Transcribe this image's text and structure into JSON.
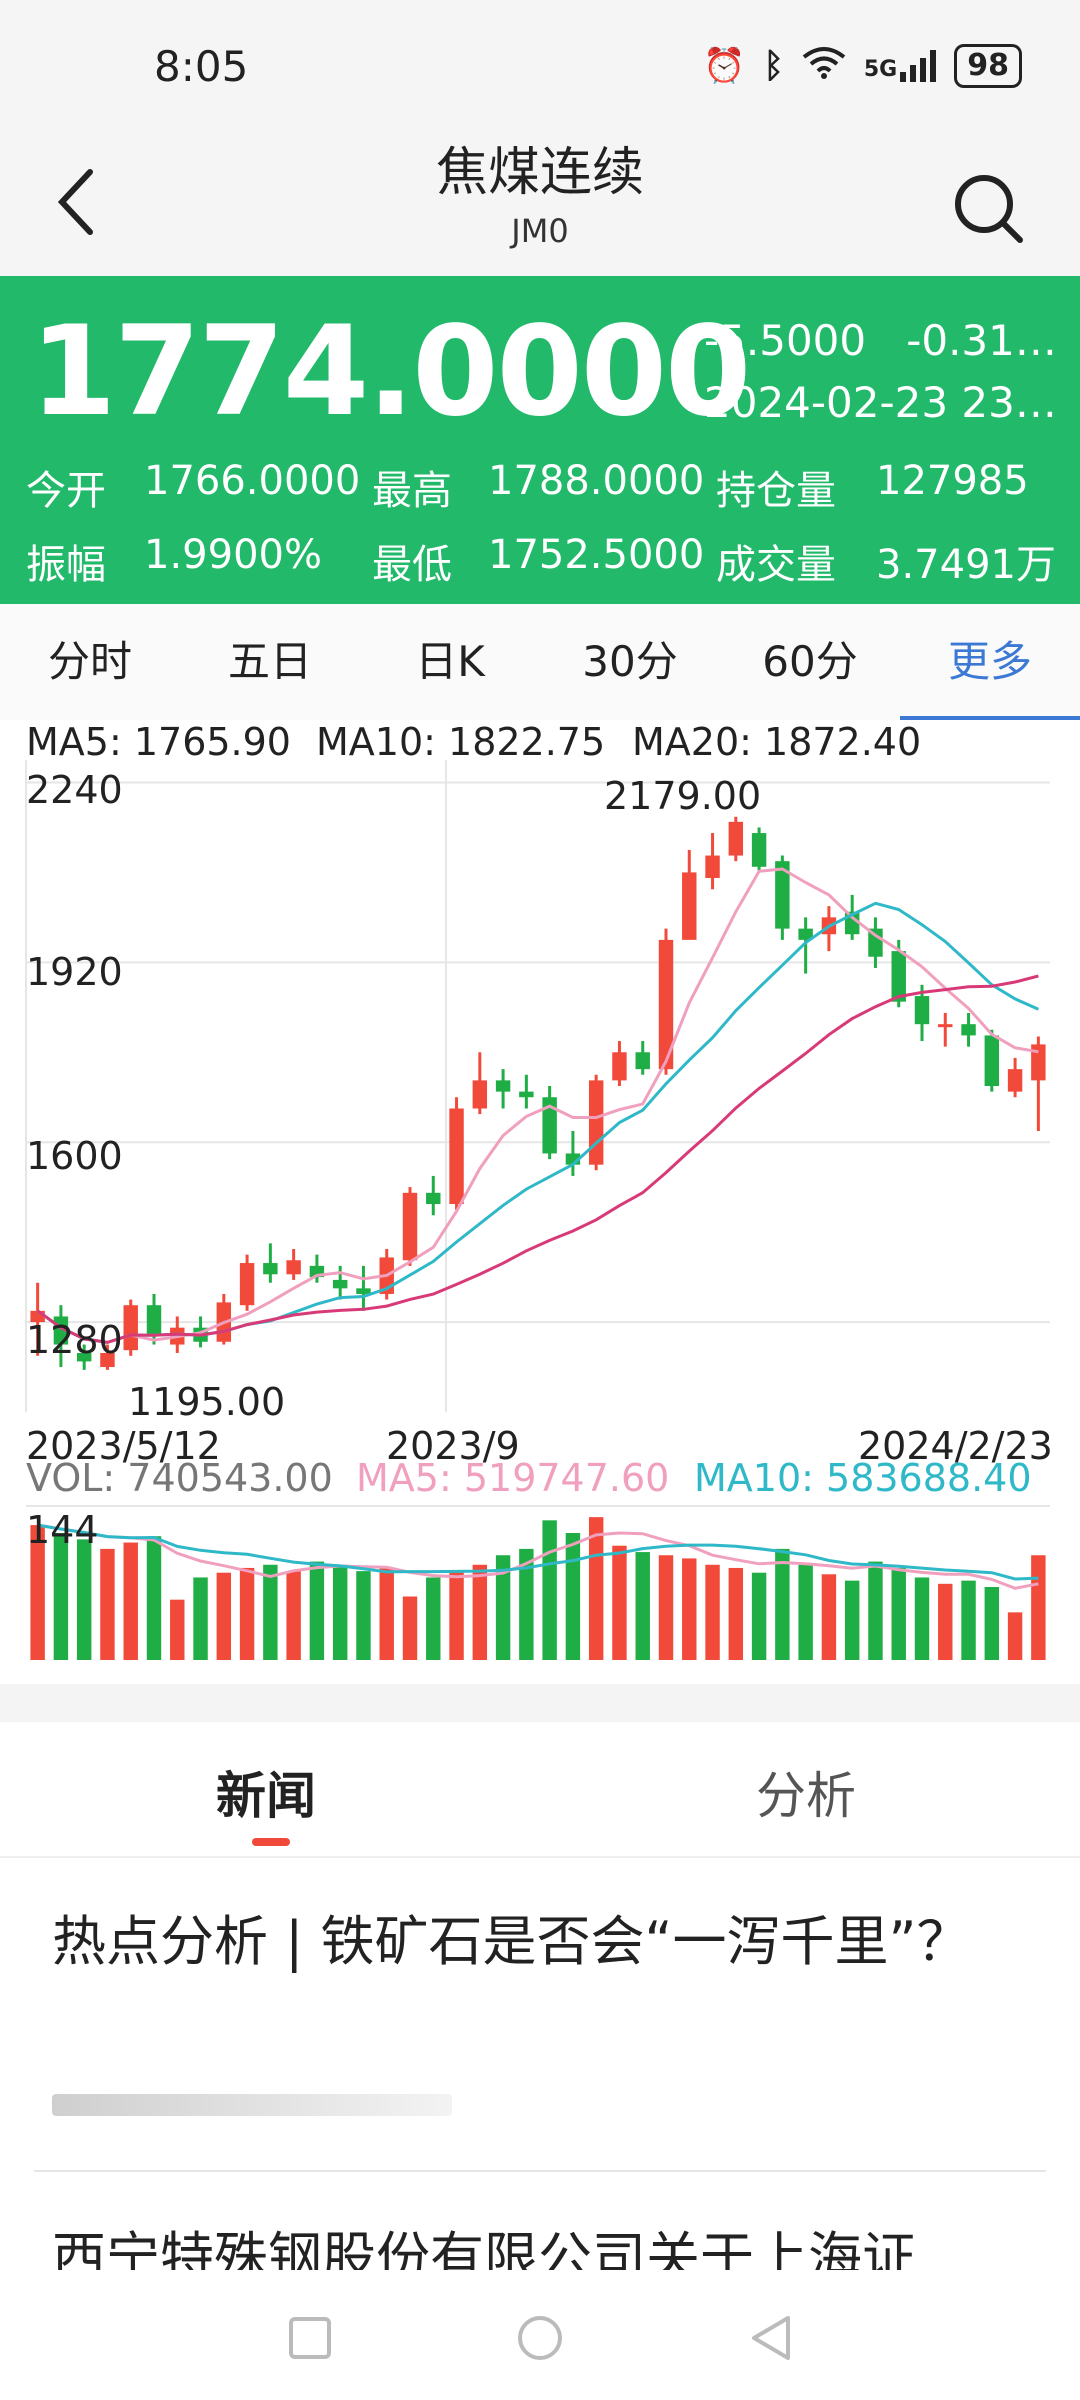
{
  "status_bar": {
    "time": "8:05",
    "battery": "98",
    "network": "5G"
  },
  "header": {
    "title": "焦煤连续",
    "code": "JM0"
  },
  "quote": {
    "price": "1774.0000",
    "change": "-5.5000",
    "change_pct": "-0.31…",
    "datetime": "2024-02-23 23…",
    "open_label": "今开",
    "open": "1766.0000",
    "high_label": "最高",
    "high": "1788.0000",
    "oi_label": "持仓量",
    "oi": "127985",
    "amp_label": "振幅",
    "amp": "1.9900%",
    "low_label": "最低",
    "low": "1752.5000",
    "vol_label": "成交量",
    "vol": "3.7491万"
  },
  "tabs": [
    "分时",
    "五日",
    "日K",
    "30分",
    "60分",
    "更多"
  ],
  "active_tab": "更多",
  "chart_data": {
    "type": "candlestick",
    "ma_legend": [
      {
        "label": "MA5: 1765.90",
        "color": "#f0a0be"
      },
      {
        "label": "MA10: 1822.75",
        "color": "#2fb8c8"
      },
      {
        "label": "MA20: 1872.40",
        "color": "#d83a78"
      }
    ],
    "y_ticks": [
      "2240",
      "1920",
      "1600",
      "1280"
    ],
    "y_tick_values": [
      2240,
      1920,
      1600,
      1280
    ],
    "ylim": [
      1120,
      2280
    ],
    "x_labels": [
      "2023/5/12",
      "2023/9",
      "2024/2/23"
    ],
    "max_label": "2179.00",
    "min_label": "1195.00",
    "candles": [
      [
        1280,
        1300,
        1350,
        1220
      ],
      [
        1290,
        1240,
        1310,
        1200
      ],
      [
        1225,
        1210,
        1240,
        1195
      ],
      [
        1200,
        1225,
        1240,
        1195
      ],
      [
        1230,
        1310,
        1320,
        1220
      ],
      [
        1310,
        1255,
        1330,
        1240
      ],
      [
        1240,
        1270,
        1290,
        1225
      ],
      [
        1270,
        1245,
        1290,
        1235
      ],
      [
        1245,
        1315,
        1330,
        1240
      ],
      [
        1310,
        1385,
        1400,
        1300
      ],
      [
        1385,
        1365,
        1420,
        1350
      ],
      [
        1365,
        1390,
        1410,
        1355
      ],
      [
        1380,
        1360,
        1400,
        1350
      ],
      [
        1355,
        1340,
        1380,
        1320
      ],
      [
        1340,
        1330,
        1380,
        1300
      ],
      [
        1330,
        1395,
        1410,
        1320
      ],
      [
        1390,
        1510,
        1520,
        1380
      ],
      [
        1510,
        1490,
        1540,
        1470
      ],
      [
        1490,
        1660,
        1680,
        1480
      ],
      [
        1660,
        1710,
        1760,
        1650
      ],
      [
        1710,
        1690,
        1730,
        1660
      ],
      [
        1690,
        1680,
        1720,
        1660
      ],
      [
        1680,
        1580,
        1700,
        1570
      ],
      [
        1580,
        1560,
        1620,
        1540
      ],
      [
        1560,
        1710,
        1720,
        1550
      ],
      [
        1710,
        1760,
        1780,
        1700
      ],
      [
        1760,
        1730,
        1780,
        1720
      ],
      [
        1730,
        1960,
        1980,
        1720
      ],
      [
        1960,
        2080,
        2120,
        2050
      ],
      [
        2070,
        2110,
        2150,
        2050
      ],
      [
        2110,
        2170,
        2179,
        2100
      ],
      [
        2150,
        2090,
        2160,
        2080
      ],
      [
        2100,
        1980,
        2110,
        1960
      ],
      [
        1980,
        1960,
        2000,
        1900
      ],
      [
        1970,
        2000,
        2020,
        1940
      ],
      [
        2010,
        1970,
        2040,
        1960
      ],
      [
        1980,
        1930,
        2000,
        1910
      ],
      [
        1940,
        1850,
        1960,
        1840
      ],
      [
        1860,
        1810,
        1880,
        1780
      ],
      [
        1810,
        1810,
        1830,
        1770
      ],
      [
        1810,
        1790,
        1830,
        1770
      ],
      [
        1790,
        1700,
        1800,
        1690
      ],
      [
        1690,
        1730,
        1750,
        1680
      ],
      [
        1710,
        1774,
        1788,
        1620
      ]
    ],
    "volume": {
      "label": "VOL: 740543.00",
      "ma5_label": "MA5: 519747.60",
      "ma10_label": "MA10: 583688.40",
      "y_tick": "144",
      "bars": [
        85,
        80,
        76,
        70,
        74,
        78,
        38,
        52,
        55,
        58,
        60,
        56,
        62,
        60,
        56,
        58,
        40,
        52,
        56,
        60,
        66,
        70,
        88,
        80,
        90,
        72,
        68,
        66,
        64,
        60,
        58,
        55,
        70,
        60,
        54,
        50,
        62,
        58,
        52,
        48,
        50,
        46,
        30,
        66
      ]
    }
  },
  "news_tabs": [
    "新闻",
    "分析"
  ],
  "news": [
    "热点分析 | 铁矿石是否会“一泻千里”？",
    "西宁特殊钢股份有限公司关于上海证"
  ]
}
